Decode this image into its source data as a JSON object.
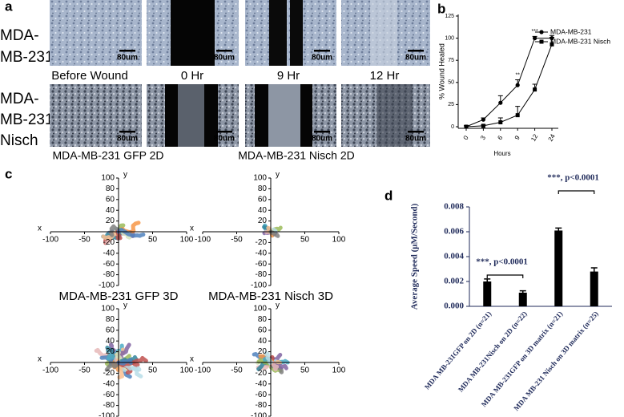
{
  "figure": {
    "panel_a": {
      "label": "a",
      "row_labels": [
        [
          "MDA-",
          "MB-231"
        ],
        [
          "MDA-",
          "MB-231",
          "Nisch"
        ]
      ],
      "column_labels": [
        "Before Wound",
        "0 Hr",
        "9 Hr",
        "12 Hr"
      ],
      "scale_bar": "80um",
      "captions": [
        "MDA-MB-231 GFP 2D",
        "MDA-MB-231 Nisch 2D"
      ]
    },
    "panel_c": {
      "label": "c",
      "x_axis_label": "x",
      "y_axis_label": "y",
      "xlim": [
        -100,
        100
      ],
      "ylim": [
        -100,
        100
      ],
      "xticks": [
        -100,
        -50,
        50,
        100
      ],
      "yticks": [
        100,
        80,
        60,
        40,
        20,
        -20,
        -40,
        -60,
        -80,
        -100
      ],
      "captions": [
        "MDA-MB-231 GFP 3D",
        "MDA-MB-231 Nisch 3D"
      ]
    }
  },
  "chart_data": [
    {
      "type": "line",
      "label": "b",
      "y_label": "% Wound Healed",
      "x_label": "Hours",
      "categories": [
        "0",
        "3",
        "6",
        "9",
        "12",
        "24"
      ],
      "series": [
        {
          "name": "MDA-MB-231",
          "color": "#000000",
          "marker": "circle",
          "values": [
            0,
            8,
            27,
            47,
            100,
            100
          ],
          "errors": [
            1,
            2,
            8,
            6,
            2,
            3
          ]
        },
        {
          "name": "MDA-MB-231 Nisch",
          "color": "#000000",
          "marker": "square",
          "values": [
            0,
            1,
            5,
            13,
            42,
            93
          ],
          "errors": [
            1,
            1,
            5,
            10,
            6,
            8
          ]
        }
      ],
      "ylim": [
        0,
        125
      ],
      "yticks": [
        0,
        25,
        50,
        75,
        100,
        125
      ],
      "annotations": [
        {
          "text": "**",
          "x": "9"
        },
        {
          "text": "***",
          "x": "12"
        }
      ]
    },
    {
      "type": "bar",
      "label": "d",
      "y_label": "Average Speed (μM/Second)",
      "categories": [
        "MDA MB-231GFP on 2D (n=21)",
        "MDA MB-231Nisch on 2D (n=22)",
        "MDA MB-231GFP on 3D matrix (n=21)",
        "MDA MB-231 Nisch on 3D matrix (n=25)"
      ],
      "values": [
        0.002,
        0.0011,
        0.0061,
        0.0028
      ],
      "errors": [
        0.0002,
        0.00015,
        0.0002,
        0.0003
      ],
      "color": "#000000",
      "ylim": [
        0,
        0.008
      ],
      "yticks": [
        {
          "value": 0,
          "label": "0.000"
        },
        {
          "value": 0.002,
          "label": "0.002"
        },
        {
          "value": 0.004,
          "label": "0.004"
        },
        {
          "value": 0.006,
          "label": "0.006"
        },
        {
          "value": 0.008,
          "label": "0.008"
        }
      ],
      "annotations": [
        "***, p<0.0001",
        "***, p<0.0001"
      ]
    }
  ]
}
